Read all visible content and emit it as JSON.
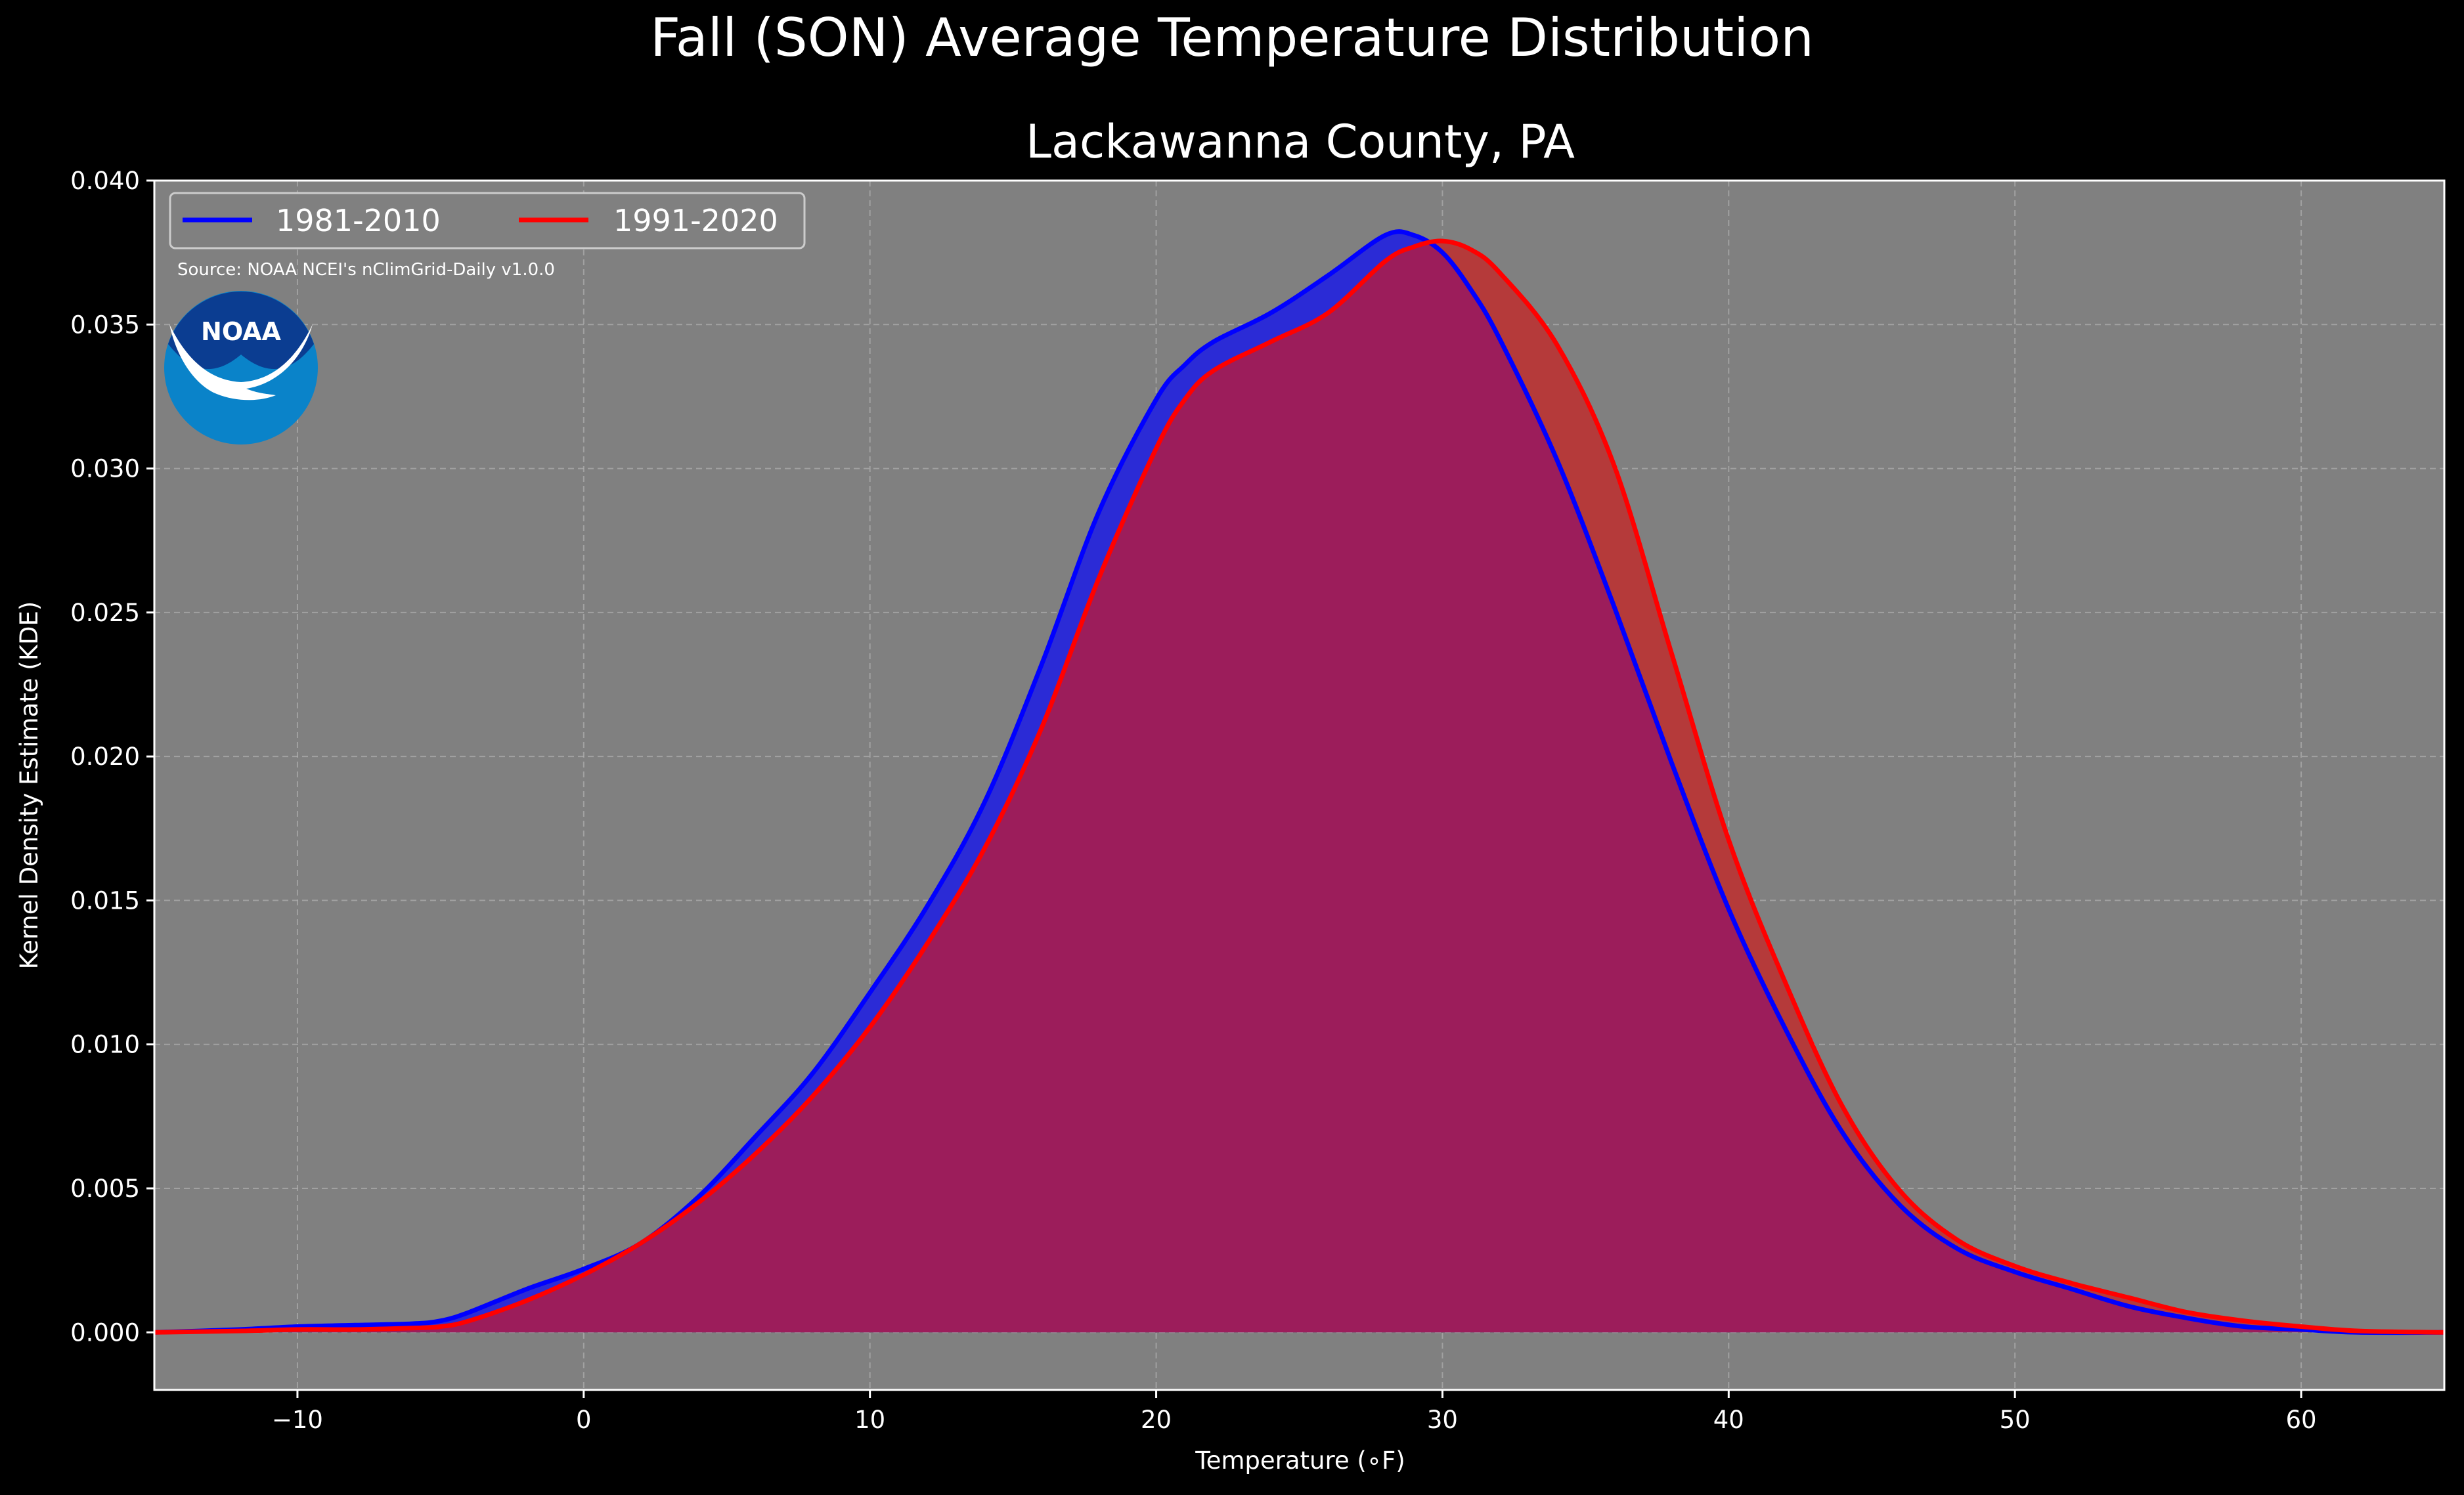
{
  "chart_data": {
    "type": "area",
    "title": "Fall (SON) Average Temperature Distribution",
    "subtitle": "Lackawanna County, PA",
    "xlabel": "Temperature (∘F)",
    "ylabel": "Kernel Density Estimate (KDE)",
    "xlim": [
      -15,
      65
    ],
    "ylim": [
      -0.002,
      0.04
    ],
    "xticks": [
      -10,
      0,
      10,
      20,
      30,
      40,
      50,
      60
    ],
    "xtick_labels": [
      "−10",
      "0",
      "10",
      "20",
      "30",
      "40",
      "50",
      "60"
    ],
    "yticks": [
      0,
      0.005,
      0.01,
      0.015,
      0.02,
      0.025,
      0.03,
      0.035,
      0.04
    ],
    "ytick_labels": [
      "0.000",
      "0.005",
      "0.010",
      "0.015",
      "0.020",
      "0.025",
      "0.030",
      "0.035",
      "0.040"
    ],
    "grid": true,
    "legend_position": "top-left",
    "source_note": "Source: NOAA NCEI's nClimGrid-Daily v1.0.0",
    "logo_text": "NOAA",
    "colors": {
      "background": "#000000",
      "plot_background": "#808080",
      "grid": "#b0b0b0",
      "text": "#ffffff",
      "overlap_fill": "#9c1d5b"
    },
    "x": [
      -15,
      -12,
      -10,
      -8,
      -6,
      -5,
      -4,
      -2,
      0,
      2,
      4,
      6,
      8,
      10,
      12,
      14,
      16,
      18,
      20,
      21,
      22,
      24,
      26,
      28,
      29,
      30,
      31,
      32,
      34,
      36,
      38,
      40,
      42,
      44,
      46,
      48,
      50,
      52,
      54,
      56,
      58,
      60,
      62,
      65
    ],
    "series": [
      {
        "name": "1981-2010",
        "color": "#0000ff",
        "fill": "#2b2bd6",
        "values": [
          0,
          0.0001,
          0.0002,
          0.00025,
          0.0003,
          0.0004,
          0.0007,
          0.0015,
          0.0022,
          0.0031,
          0.0047,
          0.0068,
          0.009,
          0.0118,
          0.0148,
          0.0184,
          0.0232,
          0.0285,
          0.0324,
          0.0336,
          0.0344,
          0.0354,
          0.0367,
          0.0381,
          0.0381,
          0.0375,
          0.0362,
          0.0345,
          0.0303,
          0.0252,
          0.0198,
          0.0147,
          0.0105,
          0.0069,
          0.0044,
          0.0029,
          0.0021,
          0.0015,
          0.0009,
          0.0005,
          0.0002,
          0.0001,
          0,
          0
        ]
      },
      {
        "name": "1991-2020",
        "color": "#ff0000",
        "fill": "#b53a3a",
        "values": [
          0,
          5e-05,
          0.0001,
          0.0001,
          0.00015,
          0.0002,
          0.0004,
          0.0011,
          0.002,
          0.0031,
          0.0045,
          0.0062,
          0.0082,
          0.0106,
          0.0135,
          0.0168,
          0.021,
          0.0262,
          0.0307,
          0.0324,
          0.0334,
          0.0344,
          0.0354,
          0.0372,
          0.0377,
          0.0379,
          0.0376,
          0.0368,
          0.0343,
          0.0301,
          0.0236,
          0.0171,
          0.0121,
          0.0078,
          0.0049,
          0.0032,
          0.0023,
          0.0017,
          0.0012,
          0.0007,
          0.0004,
          0.0002,
          5e-05,
          0
        ]
      }
    ]
  }
}
